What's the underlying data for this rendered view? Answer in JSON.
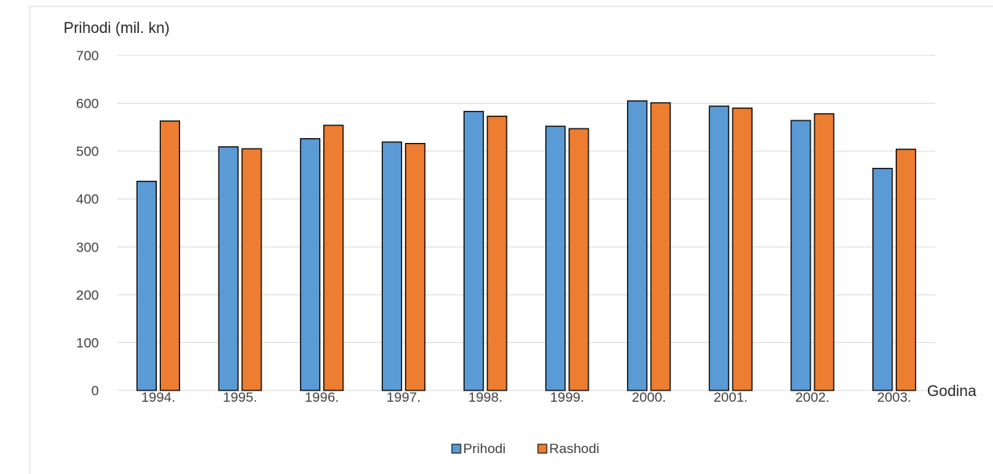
{
  "chart_data": {
    "type": "bar",
    "ylabel": "Prihodi (mil. kn)",
    "xlabel": "Godina",
    "categories": [
      "1994.",
      "1995.",
      "1996.",
      "1997.",
      "1998.",
      "1999.",
      "2000.",
      "2001.",
      "2002.",
      "2003."
    ],
    "series": [
      {
        "name": "Prihodi",
        "color": "#5B9BD5",
        "values": [
          437,
          509,
          526,
          519,
          583,
          552,
          605,
          594,
          564,
          464
        ]
      },
      {
        "name": "Rashodi",
        "color": "#ED7D31",
        "values": [
          563,
          505,
          554,
          516,
          573,
          547,
          601,
          590,
          578,
          504
        ]
      }
    ],
    "ylim": [
      0,
      700
    ],
    "yticks": [
      0,
      100,
      200,
      300,
      400,
      500,
      600,
      700
    ],
    "grid": true,
    "legend": "bottom-center"
  }
}
